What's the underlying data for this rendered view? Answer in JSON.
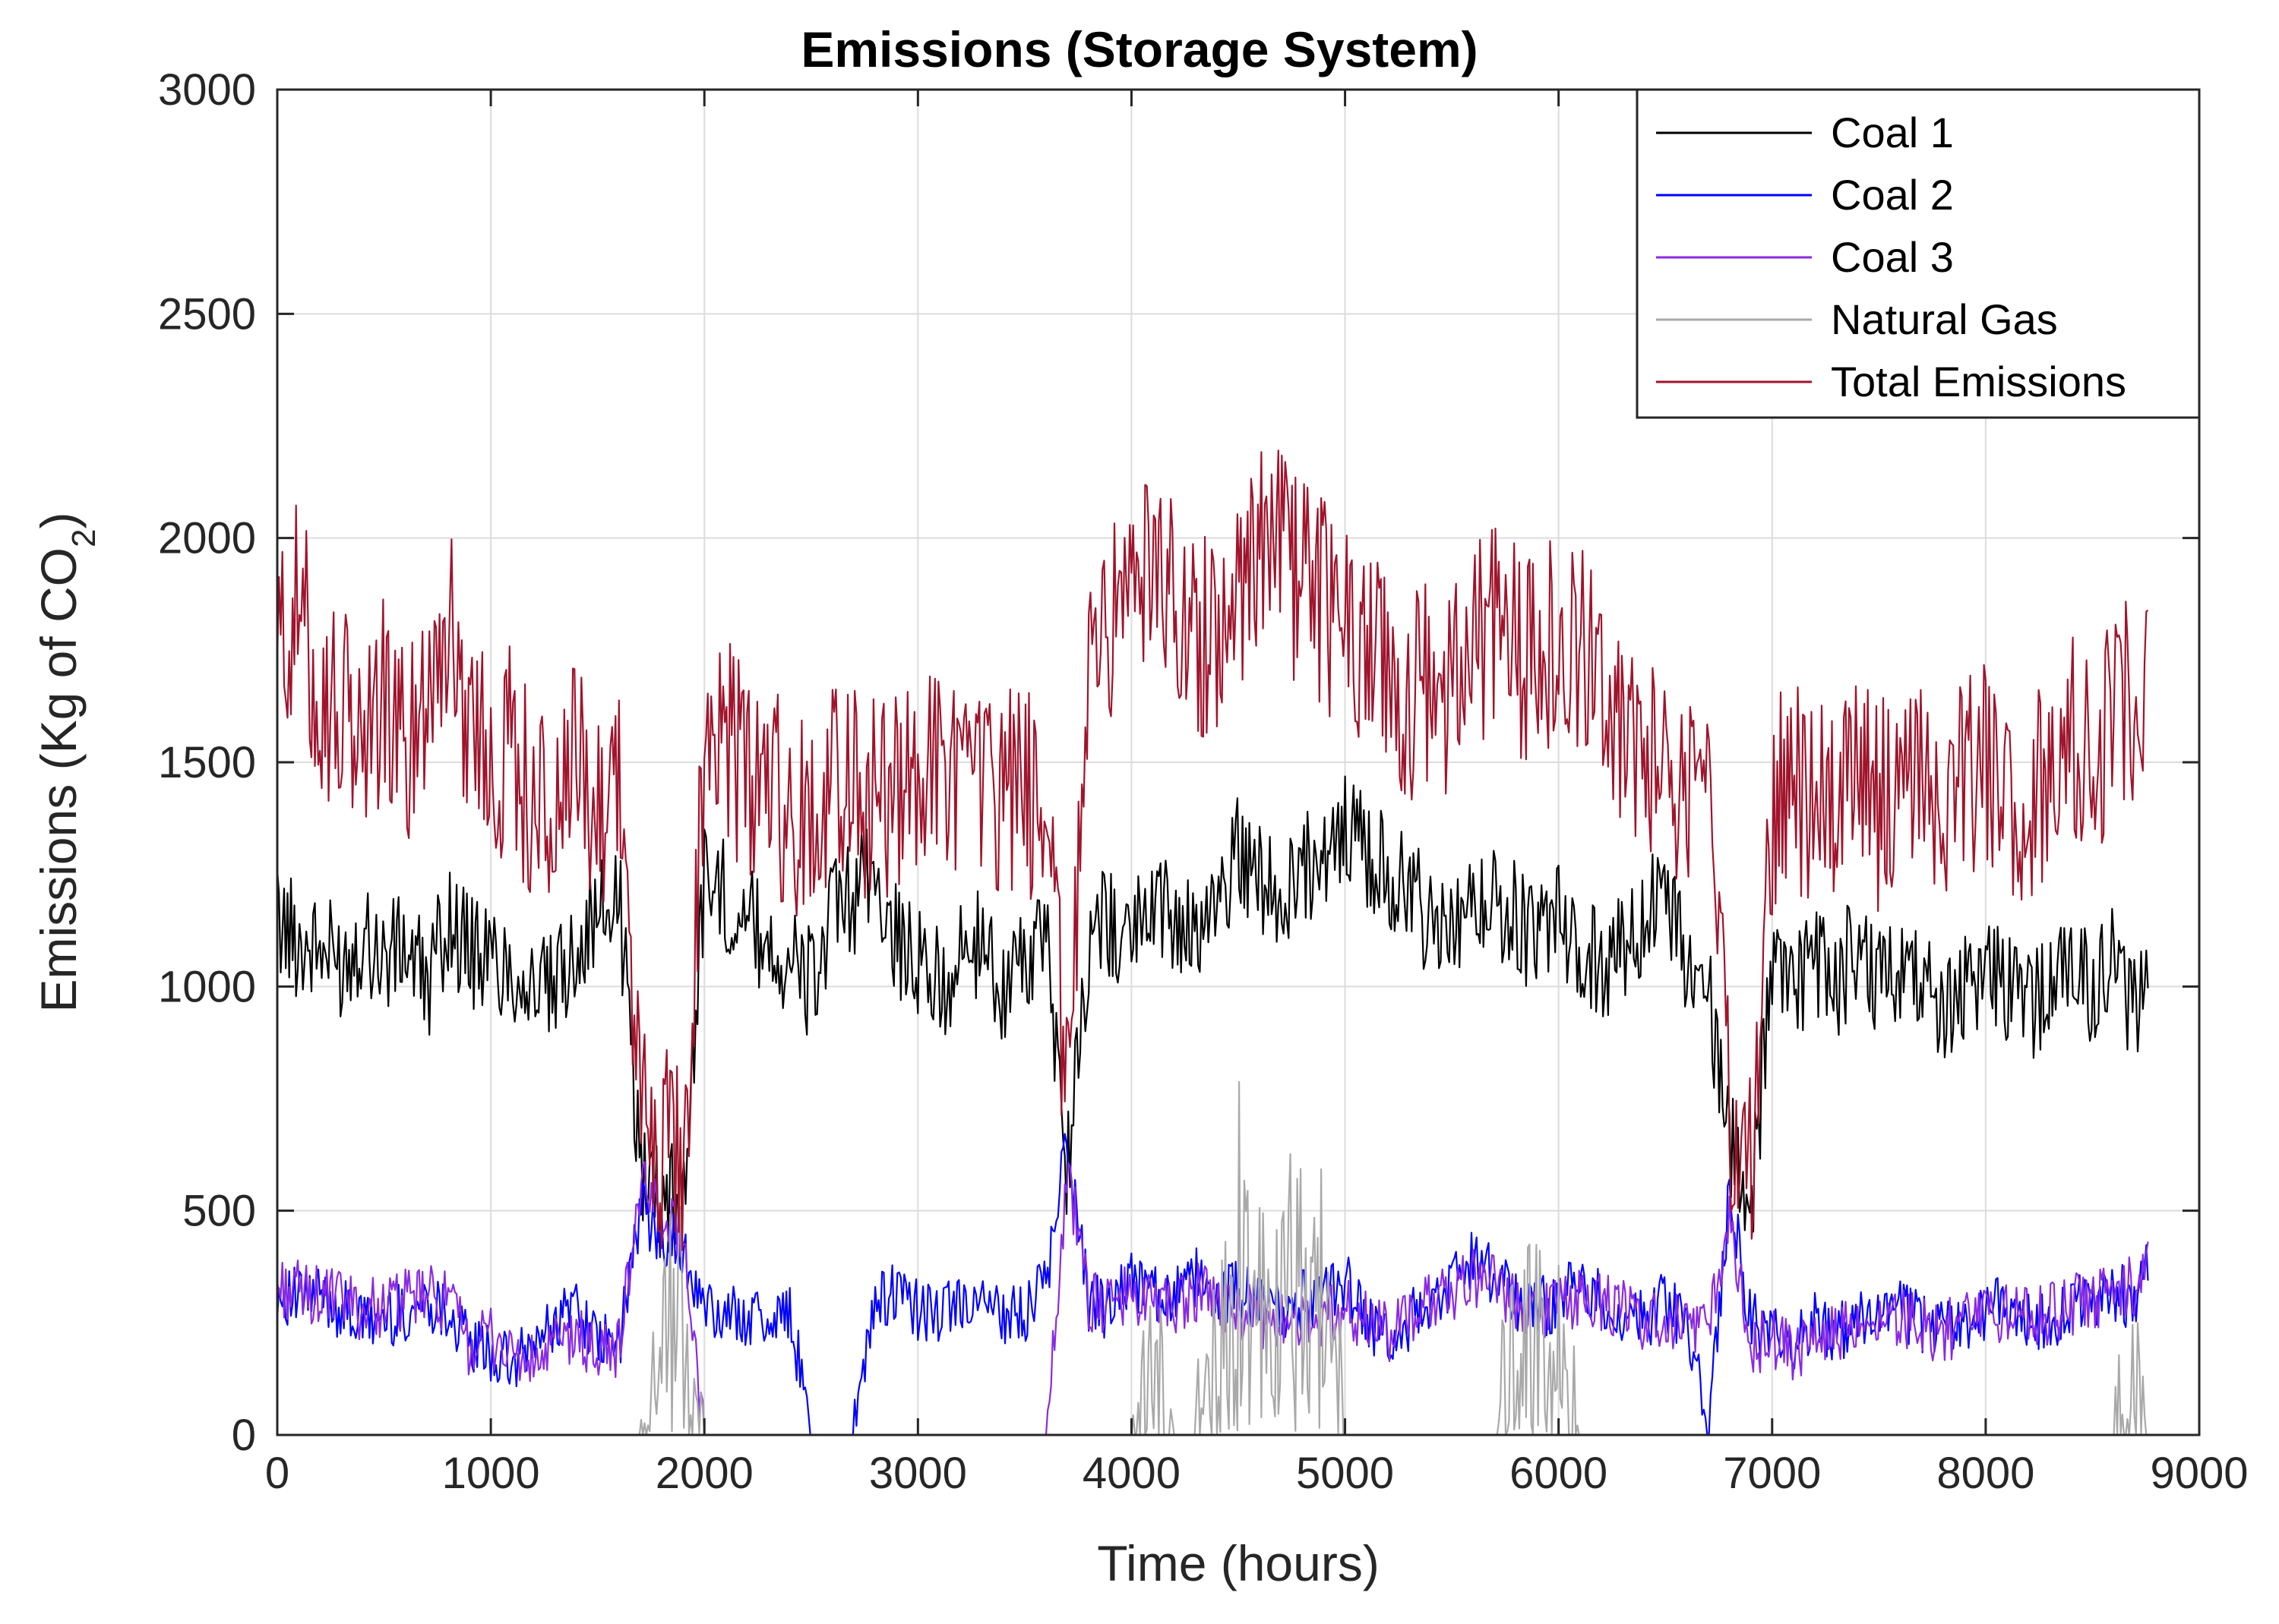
{
  "chart_data": {
    "type": "line",
    "title": "Emissions (Storage System)",
    "xlabel": "Time (hours)",
    "ylabel_main": "Emissions (Kg of CO",
    "ylabel_sub": "2",
    "ylabel_close": ")",
    "xlim": [
      0,
      9000
    ],
    "ylim": [
      0,
      3000
    ],
    "xticks": [
      0,
      1000,
      2000,
      3000,
      4000,
      5000,
      6000,
      7000,
      8000,
      9000
    ],
    "yticks": [
      0,
      500,
      1000,
      1500,
      2000,
      2500,
      3000
    ],
    "grid": true,
    "legend_position": "top-right",
    "x_points": [
      0,
      100,
      200,
      300,
      400,
      500,
      600,
      700,
      800,
      900,
      1000,
      1100,
      1200,
      1300,
      1400,
      1500,
      1600,
      1700,
      1800,
      1900,
      2000,
      2100,
      2200,
      2300,
      2400,
      2500,
      2600,
      2700,
      2800,
      2900,
      3000,
      3100,
      3200,
      3300,
      3400,
      3500,
      3600,
      3700,
      3800,
      3900,
      4000,
      4100,
      4200,
      4300,
      4400,
      4500,
      4600,
      4700,
      4800,
      4900,
      5000,
      5100,
      5200,
      5300,
      5400,
      5500,
      5600,
      5700,
      5800,
      5900,
      6000,
      6100,
      6200,
      6300,
      6400,
      6500,
      6600,
      6700,
      6800,
      6900,
      7000,
      7100,
      7200,
      7300,
      7400,
      7500,
      7600,
      7700,
      7800,
      7900,
      8000,
      8100,
      8200,
      8300,
      8400,
      8500,
      8600,
      8700,
      8760
    ],
    "series": [
      {
        "name": "Coal 1",
        "color": "#000000",
        "values": [
          1150,
          1100,
          1080,
          1050,
          1120,
          1060,
          1090,
          1000,
          1150,
          1080,
          1060,
          1040,
          1000,
          980,
          1100,
          1150,
          1200,
          600,
          550,
          500,
          1250,
          1200,
          1150,
          1100,
          1050,
          1000,
          1150,
          1200,
          1250,
          1100,
          1050,
          1000,
          1050,
          1100,
          1000,
          1050,
          1100,
          600,
          1100,
          1150,
          1100,
          1200,
          1150,
          1100,
          1200,
          1300,
          1250,
          1200,
          1250,
          1300,
          1350,
          1300,
          1250,
          1200,
          1150,
          1100,
          1150,
          1200,
          1150,
          1100,
          1150,
          1100,
          1050,
          1100,
          1150,
          1200,
          1050,
          1000,
          650,
          500,
          1050,
          1000,
          1050,
          1000,
          1100,
          1000,
          1050,
          1000,
          950,
          1000,
          1050,
          1000,
          950,
          1000,
          1050,
          1000,
          1050,
          950,
          1100
        ]
      },
      {
        "name": "Coal 2",
        "color": "#0000ff",
        "values": [
          320,
          300,
          310,
          280,
          250,
          260,
          270,
          300,
          280,
          200,
          180,
          150,
          200,
          250,
          300,
          200,
          200,
          500,
          450,
          400,
          280,
          260,
          270,
          250,
          280,
          0,
          0,
          0,
          300,
          320,
          280,
          260,
          300,
          280,
          270,
          260,
          350,
          650,
          300,
          280,
          350,
          320,
          300,
          350,
          300,
          320,
          300,
          280,
          300,
          320,
          350,
          250,
          200,
          250,
          300,
          350,
          400,
          350,
          300,
          280,
          300,
          350,
          300,
          280,
          250,
          300,
          250,
          0,
          550,
          250,
          220,
          200,
          250,
          230,
          260,
          250,
          280,
          250,
          240,
          260,
          280,
          300,
          250,
          260,
          280,
          300,
          320,
          300,
          400
        ]
      },
      {
        "name": "Coal 3",
        "color": "#8a2be2",
        "values": [
          330,
          320,
          310,
          300,
          280,
          290,
          300,
          310,
          300,
          200,
          220,
          180,
          150,
          200,
          220,
          180,
          200,
          550,
          500,
          450,
          0,
          0,
          0,
          0,
          0,
          0,
          0,
          0,
          0,
          0,
          0,
          0,
          0,
          0,
          0,
          0,
          0,
          600,
          300,
          280,
          320,
          300,
          280,
          320,
          300,
          280,
          260,
          250,
          270,
          260,
          280,
          250,
          230,
          250,
          300,
          320,
          350,
          330,
          300,
          280,
          290,
          310,
          300,
          280,
          250,
          260,
          240,
          220,
          500,
          200,
          220,
          180,
          200,
          220,
          250,
          230,
          260,
          240,
          230,
          250,
          260,
          280,
          260,
          270,
          290,
          300,
          320,
          330,
          420
        ]
      },
      {
        "name": "Natural Gas",
        "color": "#a9a9a9",
        "values": [
          0,
          0,
          0,
          0,
          0,
          0,
          0,
          0,
          0,
          0,
          0,
          0,
          0,
          0,
          0,
          0,
          0,
          0,
          250,
          200,
          0,
          0,
          0,
          0,
          0,
          0,
          0,
          0,
          0,
          0,
          0,
          0,
          0,
          0,
          0,
          0,
          0,
          0,
          0,
          0,
          0,
          100,
          0,
          0,
          150,
          400,
          250,
          300,
          450,
          250,
          0,
          0,
          0,
          0,
          0,
          0,
          0,
          0,
          150,
          200,
          120,
          0,
          0,
          0,
          0,
          0,
          0,
          0,
          0,
          0,
          0,
          0,
          0,
          0,
          0,
          0,
          0,
          0,
          0,
          0,
          0,
          0,
          0,
          0,
          0,
          0,
          0,
          80,
          0
        ]
      },
      {
        "name": "Total Emissions",
        "color": "#a0142c",
        "values": [
          1750,
          1850,
          1650,
          1600,
          1550,
          1650,
          1500,
          1700,
          1800,
          1600,
          1500,
          1550,
          1400,
          1350,
          1500,
          1400,
          1500,
          700,
          650,
          600,
          1500,
          1550,
          1450,
          1450,
          1400,
          1350,
          1500,
          1450,
          1400,
          1450,
          1500,
          1450,
          1500,
          1400,
          1450,
          1400,
          1500,
          700,
          1750,
          1800,
          1850,
          1900,
          1850,
          1750,
          1800,
          1900,
          2000,
          1950,
          1900,
          1850,
          1800,
          1750,
          1700,
          1650,
          1700,
          1650,
          1750,
          1800,
          1750,
          1700,
          1800,
          1750,
          1650,
          1600,
          1550,
          1500,
          1450,
          1350,
          750,
          600,
          1400,
          1450,
          1400,
          1450,
          1500,
          1400,
          1450,
          1500,
          1400,
          1450,
          1500,
          1450,
          1400,
          1500,
          1550,
          1500,
          1600,
          1650,
          1700
        ]
      }
    ]
  }
}
